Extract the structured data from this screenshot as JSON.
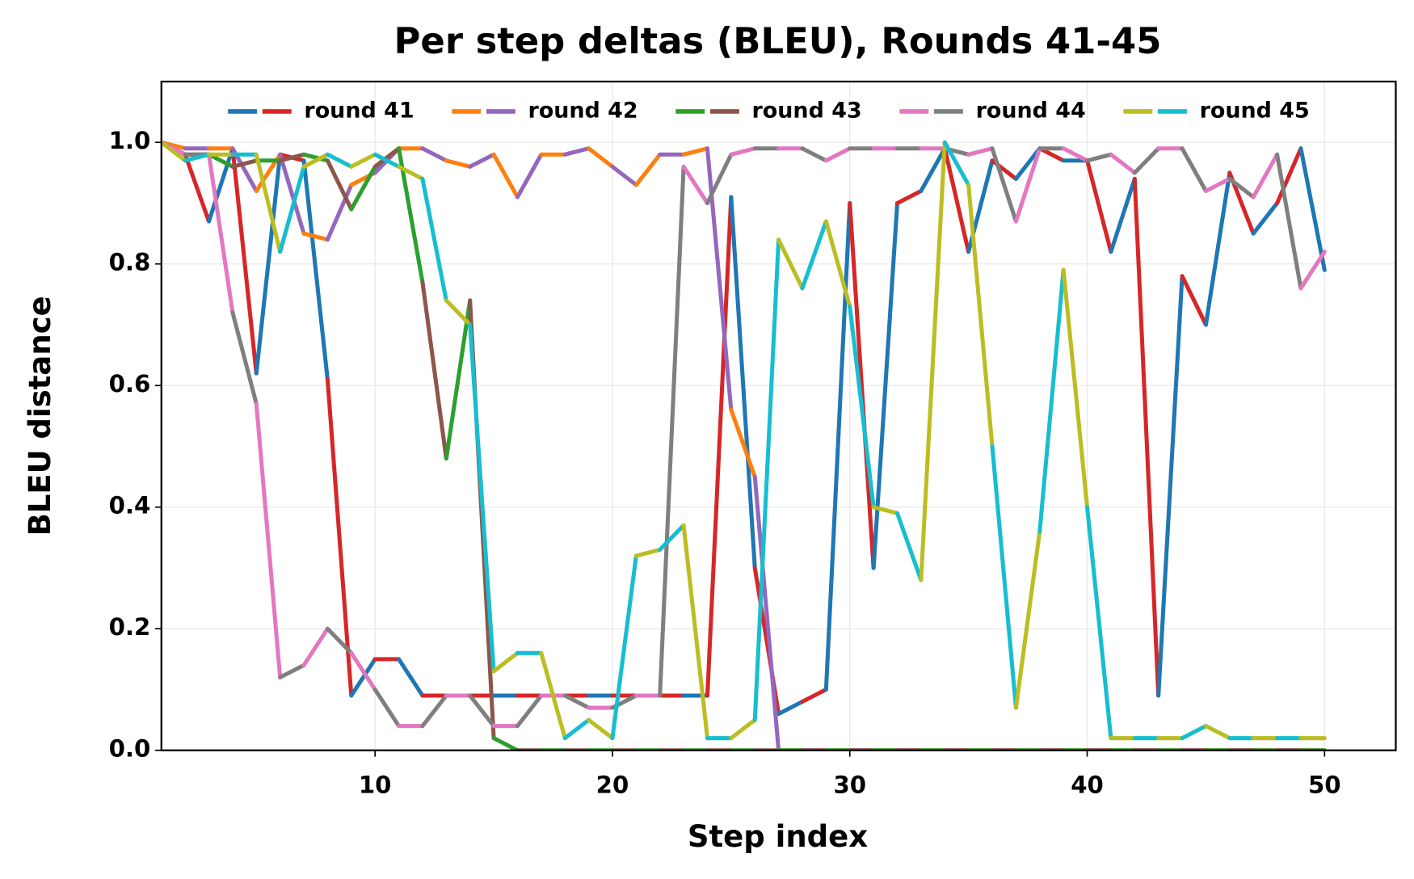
{
  "chart_data": {
    "type": "line",
    "title": "Per step deltas (BLEU), Rounds 41-45",
    "x_label": "Step index",
    "y_label": "BLEU distance",
    "x": [
      1,
      2,
      3,
      4,
      5,
      6,
      7,
      8,
      9,
      10,
      11,
      12,
      13,
      14,
      15,
      16,
      17,
      18,
      19,
      20,
      21,
      22,
      23,
      24,
      25,
      26,
      27,
      28,
      29,
      30,
      31,
      32,
      33,
      34,
      35,
      36,
      37,
      38,
      39,
      40,
      41,
      42,
      43,
      44,
      45,
      46,
      47,
      48,
      49,
      50
    ],
    "xlim": [
      1,
      53
    ],
    "ylim": [
      0,
      1.1
    ],
    "xticks": [
      10,
      20,
      30,
      40,
      50
    ],
    "yticks": [
      {
        "value": 0,
        "label": "0.0"
      },
      {
        "value": 0.2,
        "label": "0.2"
      },
      {
        "value": 0.4,
        "label": "0.4"
      },
      {
        "value": 0.6,
        "label": "0.6"
      },
      {
        "value": 0.8,
        "label": "0.8"
      },
      {
        "value": 1,
        "label": "1.0"
      }
    ],
    "grid": true,
    "legend_position": "top",
    "series": [
      {
        "name": "round 41",
        "colors": [
          "#1f77b4",
          "#d62728"
        ],
        "values": [
          1.0,
          0.98,
          0.87,
          0.99,
          0.62,
          0.98,
          0.97,
          0.61,
          0.09,
          0.15,
          0.15,
          0.09,
          0.09,
          0.09,
          0.09,
          0.09,
          0.09,
          0.09,
          0.09,
          0.09,
          0.09,
          0.09,
          0.09,
          0.09,
          0.91,
          0.3,
          0.06,
          0.08,
          0.1,
          0.9,
          0.3,
          0.9,
          0.92,
          0.99,
          0.82,
          0.97,
          0.94,
          0.99,
          0.97,
          0.97,
          0.82,
          0.94,
          0.09,
          0.78,
          0.7,
          0.95,
          0.85,
          0.9,
          0.99,
          0.79
        ]
      },
      {
        "name": "round 42",
        "colors": [
          "#ff7f0e",
          "#9467bd"
        ],
        "values": [
          1.0,
          0.99,
          0.99,
          0.99,
          0.92,
          0.98,
          0.85,
          0.84,
          0.93,
          0.95,
          0.99,
          0.99,
          0.97,
          0.96,
          0.98,
          0.91,
          0.98,
          0.98,
          0.99,
          0.96,
          0.93,
          0.98,
          0.98,
          0.99,
          0.56,
          0.45,
          0,
          0,
          0,
          0,
          0,
          0,
          0,
          0,
          0,
          0,
          0,
          0,
          0,
          0,
          0,
          0,
          0,
          0,
          0,
          0,
          0,
          0,
          0,
          0
        ]
      },
      {
        "name": "round 43",
        "colors": [
          "#2ca02c",
          "#8c564b"
        ],
        "values": [
          1.0,
          0.98,
          0.98,
          0.96,
          0.97,
          0.97,
          0.98,
          0.97,
          0.89,
          0.96,
          0.99,
          0.77,
          0.48,
          0.74,
          0.02,
          0,
          0,
          0,
          0,
          0,
          0,
          0,
          0,
          0,
          0,
          0,
          0,
          0,
          0,
          0,
          0,
          0,
          0,
          0,
          0,
          0,
          0,
          0,
          0,
          0,
          0,
          0,
          0,
          0,
          0,
          0,
          0,
          0,
          0,
          0
        ]
      },
      {
        "name": "round 44",
        "colors": [
          "#e377c2",
          "#7f7f7f"
        ],
        "values": [
          1.0,
          0.98,
          0.98,
          0.72,
          0.57,
          0.12,
          0.14,
          0.2,
          0.16,
          0.1,
          0.04,
          0.04,
          0.09,
          0.09,
          0.04,
          0.04,
          0.09,
          0.09,
          0.07,
          0.07,
          0.09,
          0.09,
          0.96,
          0.9,
          0.98,
          0.99,
          0.99,
          0.99,
          0.97,
          0.99,
          0.99,
          0.99,
          0.99,
          0.99,
          0.98,
          0.99,
          0.87,
          0.99,
          0.99,
          0.97,
          0.98,
          0.95,
          0.99,
          0.99,
          0.92,
          0.94,
          0.91,
          0.98,
          0.76,
          0.82
        ]
      },
      {
        "name": "round 45",
        "colors": [
          "#bcbd22",
          "#17becf"
        ],
        "values": [
          1.0,
          0.97,
          0.98,
          0.98,
          0.98,
          0.82,
          0.96,
          0.98,
          0.96,
          0.98,
          0.96,
          0.94,
          0.74,
          0.7,
          0.13,
          0.16,
          0.16,
          0.02,
          0.05,
          0.02,
          0.32,
          0.33,
          0.37,
          0.02,
          0.02,
          0.05,
          0.84,
          0.76,
          0.87,
          0.73,
          0.4,
          0.39,
          0.28,
          1.0,
          0.93,
          0.5,
          0.07,
          0.36,
          0.79,
          0.4,
          0.02,
          0.02,
          0.02,
          0.02,
          0.04,
          0.02,
          0.02,
          0.02,
          0.02,
          0.02
        ]
      }
    ]
  }
}
